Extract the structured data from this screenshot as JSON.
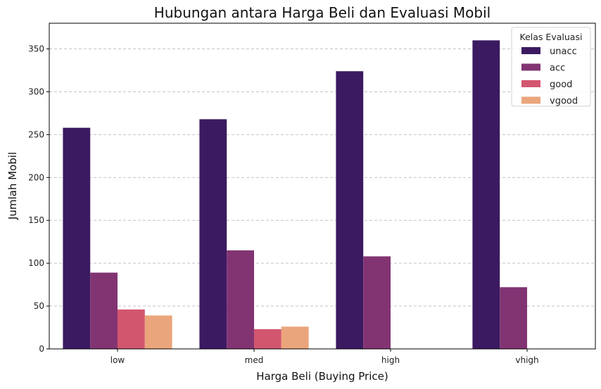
{
  "chart_data": {
    "type": "bar",
    "title": "Hubungan antara Harga Beli dan Evaluasi Mobil",
    "xlabel": "Harga Beli (Buying Price)",
    "ylabel": "Jumlah Mobil",
    "categories": [
      "low",
      "med",
      "high",
      "vhigh"
    ],
    "ylim": [
      0,
      380
    ],
    "yticks": [
      0,
      50,
      100,
      150,
      200,
      250,
      300,
      350
    ],
    "grid": "y-dashed",
    "legend": {
      "title": "Kelas Evaluasi",
      "placement": "top-right"
    },
    "series": [
      {
        "name": "unacc",
        "color": "#3b1a61",
        "values": [
          258,
          268,
          324,
          360
        ]
      },
      {
        "name": "acc",
        "color": "#823472",
        "values": [
          89,
          115,
          108,
          72
        ]
      },
      {
        "name": "good",
        "color": "#d3566f",
        "values": [
          46,
          23,
          0,
          0
        ]
      },
      {
        "name": "vgood",
        "color": "#eba57c",
        "values": [
          39,
          26,
          0,
          0
        ]
      }
    ]
  }
}
